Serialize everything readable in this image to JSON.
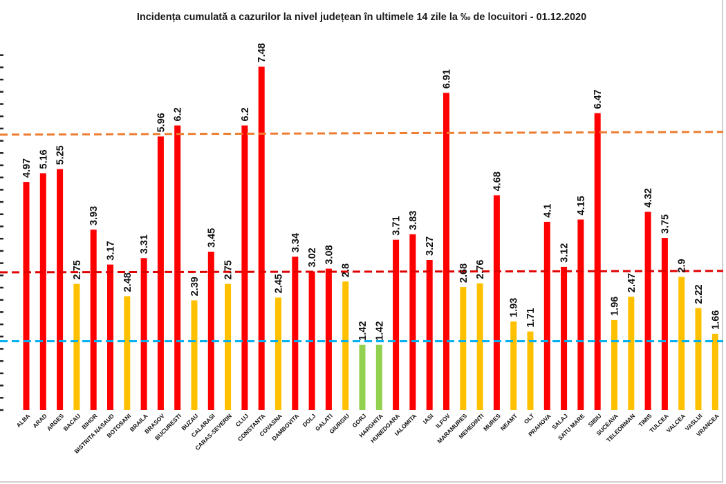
{
  "chart_data": {
    "type": "bar",
    "title": "Incidența cumulată a cazurilor la nivel județean în ultimele 14 zile la ‰ de locuitori - 01.12.2020",
    "xlabel": "",
    "ylabel": "",
    "ylim": [
      0,
      8
    ],
    "y_ticks_labels_visible": false,
    "grid": false,
    "categories": [
      "ALBA",
      "ARAD",
      "ARGES",
      "BACAU",
      "BIHOR",
      "BISTRITA NASAUD",
      "BOTOSANI",
      "BRAILA",
      "BRASOV",
      "BUCURESTI",
      "BUZAU",
      "CALARASI",
      "CARAS-SEVERIN",
      "CLUJ",
      "CONSTANTA",
      "COVASNA",
      "DAMBOVITA",
      "DOLJ",
      "GALATI",
      "GIURGIU",
      "GORJ",
      "HARGHITA",
      "HUNEDOARA",
      "IALOMITA",
      "IASI",
      "ILFOV",
      "MARAMURES",
      "MEHEDINTI",
      "MURES",
      "NEAMT",
      "OLT",
      "PRAHOVA",
      "SALAJ",
      "SATU MARE",
      "SIBIU",
      "SUCEAVA",
      "TELEORMAN",
      "TIMIS",
      "TULCEA",
      "VALCEA",
      "VASLUI",
      "VRANCEA"
    ],
    "values": [
      4.97,
      5.16,
      5.25,
      2.75,
      3.93,
      3.17,
      2.48,
      3.31,
      5.96,
      6.2,
      2.39,
      3.45,
      2.75,
      6.2,
      7.48,
      2.45,
      3.34,
      3.02,
      3.08,
      2.8,
      1.42,
      1.42,
      3.71,
      3.83,
      3.27,
      6.91,
      2.68,
      2.76,
      4.68,
      1.93,
      1.71,
      4.1,
      3.12,
      4.15,
      6.47,
      1.96,
      2.47,
      4.32,
      3.75,
      2.9,
      2.22,
      1.66
    ],
    "data_labels": [
      "4.97",
      "5.16",
      "5.25",
      "2.75",
      "3.93",
      "3.17",
      "2.48",
      "3.31",
      "5.96",
      "6.2",
      "2.39",
      "3.45",
      "2.75",
      "6.2",
      "7.48",
      "2.45",
      "3.34",
      "3.02",
      "3.08",
      "2.8",
      "1.42",
      "1.42",
      "3.71",
      "3.83",
      "3.27",
      "6.91",
      "2.68",
      "2.76",
      "4.68",
      "1.93",
      "1.71",
      "4.1",
      "3.12",
      "4.15",
      "6.47",
      "1.96",
      "2.47",
      "4.32",
      "3.75",
      "2.9",
      "2.22",
      "1.66"
    ],
    "bar_colors": [
      "#ff0000",
      "#ff0000",
      "#ff0000",
      "#ffc000",
      "#ff0000",
      "#ff0000",
      "#ffc000",
      "#ff0000",
      "#ff0000",
      "#ff0000",
      "#ffc000",
      "#ff0000",
      "#ffc000",
      "#ff0000",
      "#ff0000",
      "#ffc000",
      "#ff0000",
      "#ff0000",
      "#ff0000",
      "#ffc000",
      "#92d050",
      "#92d050",
      "#ff0000",
      "#ff0000",
      "#ff0000",
      "#ff0000",
      "#ffc000",
      "#ffc000",
      "#ff0000",
      "#ffc000",
      "#ffc000",
      "#ff0000",
      "#ff0000",
      "#ff0000",
      "#ff0000",
      "#ffc000",
      "#ffc000",
      "#ff0000",
      "#ff0000",
      "#ffc000",
      "#ffc000",
      "#ffc000"
    ],
    "reference_lines": [
      {
        "value": 6.0,
        "color": "#ed7d31",
        "style": "dashed"
      },
      {
        "value": 3.0,
        "color": "#e00000",
        "style": "dashed"
      },
      {
        "value": 1.5,
        "color": "#00b0f0",
        "style": "dashed"
      }
    ],
    "colors": {
      "red": "#ff0000",
      "yellow": "#ffc000",
      "green": "#92d050",
      "line_orange": "#ed7d31",
      "line_red": "#e00000",
      "line_blue": "#00b0f0"
    }
  }
}
